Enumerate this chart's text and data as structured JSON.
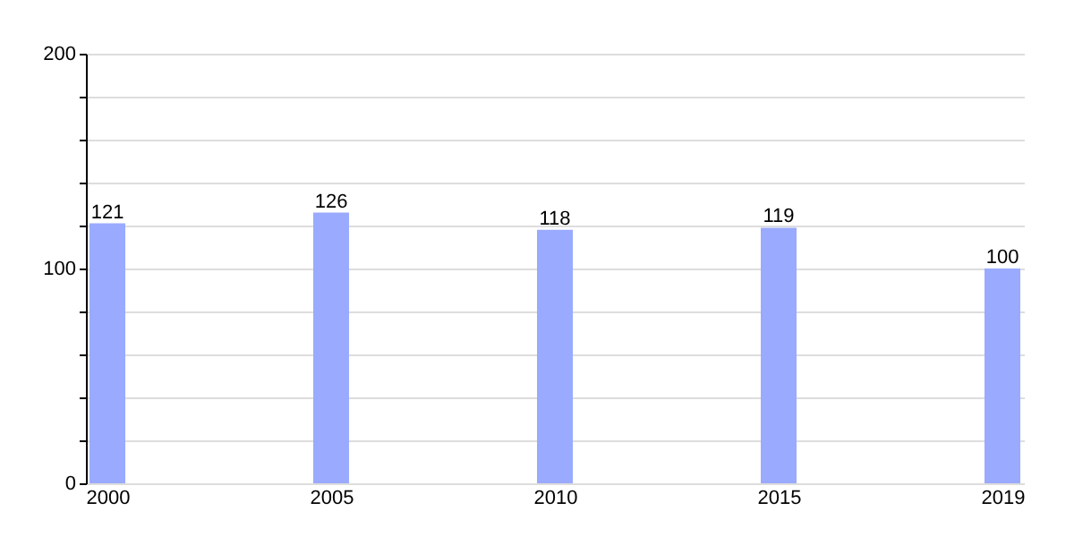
{
  "chart_data": {
    "type": "bar",
    "categories": [
      "2000",
      "2005",
      "2010",
      "2015",
      "2019"
    ],
    "values": [
      121,
      126,
      118,
      119,
      100
    ],
    "color": "#99aaff",
    "ylim": [
      0,
      200
    ],
    "yticks": [
      0,
      {
        "value": 20,
        "label": null
      },
      {
        "value": 40,
        "label": null
      },
      {
        "value": 60,
        "label": null
      },
      {
        "value": 80,
        "label": null
      },
      100,
      {
        "value": 120,
        "label": null
      },
      {
        "value": 140,
        "label": null
      },
      {
        "value": 160,
        "label": null
      },
      {
        "value": 180,
        "label": null
      },
      200
    ],
    "grid": "y",
    "data_labels": true
  }
}
